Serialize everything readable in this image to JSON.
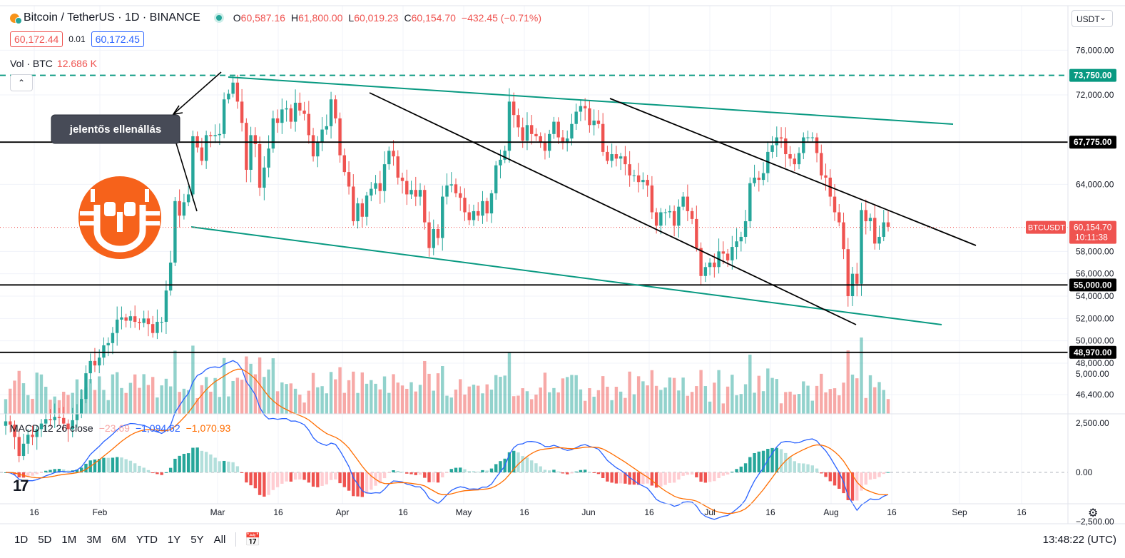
{
  "header": {
    "symbol": "Bitcoin / TetherUS · 1D · BINANCE",
    "o_label": "O",
    "o": "60,587.16",
    "h_label": "H",
    "h": "61,800.00",
    "l_label": "L",
    "l": "60,019.23",
    "c_label": "C",
    "c": "60,154.70",
    "change": "−432.45 (−0.71%)"
  },
  "quote": {
    "sell": "60,172.44",
    "spread": "0.01",
    "buy": "60,172.45"
  },
  "volume": {
    "label": "Vol · BTC",
    "value": "12.686 K"
  },
  "currency_button": "USDT",
  "macd": {
    "label": "MACD 12 26 close",
    "hist": "−23.69",
    "macd": "−1,094.62",
    "signal": "−1,070.93"
  },
  "annotation": {
    "text": "jelentős ellenállás"
  },
  "time_ranges": [
    "1D",
    "5D",
    "1M",
    "3M",
    "6M",
    "YTD",
    "1Y",
    "5Y",
    "All"
  ],
  "clock": "13:48:22 (UTC)",
  "colors": {
    "up": "#26a69a",
    "down": "#ef5350",
    "macd": "#2962ff",
    "signal": "#ff6d00",
    "channel": "#089981",
    "logo": "#f6621b"
  },
  "chart_data": {
    "type": "candlestick",
    "y_axis_ticks": [
      "76,000.00",
      "72,000.00",
      "64,000.00",
      "58,000.00",
      "56,000.00",
      "54,000.00",
      "52,000.00",
      "50,000.00",
      "48,000.00",
      "46,400.00"
    ],
    "x_axis_ticks": [
      "16",
      "Feb",
      "Mar",
      "16",
      "Apr",
      "16",
      "May",
      "16",
      "Jun",
      "16",
      "Jul",
      "16",
      "Aug",
      "16",
      "Sep",
      "16"
    ],
    "price_lines": [
      {
        "value": 73750,
        "label": "73,750.00",
        "style": "dashed",
        "color": "#089981"
      },
      {
        "value": 67775,
        "label": "67,775.00",
        "style": "solid",
        "color": "#000000"
      },
      {
        "value": 55000,
        "label": "55,000.00",
        "style": "solid",
        "color": "#000000"
      },
      {
        "value": 48970,
        "label": "48,970.00",
        "style": "solid",
        "color": "#000000"
      }
    ],
    "last_price": {
      "symbol": "BTCUSDT",
      "value": "60,154.70",
      "countdown": "10:11:38"
    },
    "macd_axis_ticks": [
      "5,000.00",
      "2,500.00",
      "0.00",
      "−2,500.00"
    ],
    "closes": [
      42800,
      42500,
      41400,
      39700,
      40800,
      41600,
      41400,
      42100,
      42600,
      43000,
      42900,
      43200,
      43100,
      42600,
      42100,
      42900,
      43500,
      44800,
      47100,
      48200,
      47800,
      48500,
      49600,
      49800,
      50700,
      51900,
      52100,
      51800,
      52200,
      51700,
      51600,
      52000,
      51500,
      50700,
      51700,
      51700,
      54500,
      57000,
      62500,
      61200,
      62400,
      63100,
      68300,
      67300,
      66100,
      68400,
      68300,
      68400,
      68500,
      71600,
      72100,
      73100,
      71400,
      69500,
      65300,
      68400,
      67600,
      63700,
      65500,
      67200,
      69900,
      69500,
      70700,
      70800,
      69600,
      71300,
      70600,
      70300,
      68400,
      66500,
      67800,
      68900,
      69200,
      71600,
      69900,
      66600,
      65100,
      63800,
      60700,
      62300,
      61100,
      63000,
      63600,
      64100,
      63400,
      65800,
      67000,
      66500,
      64600,
      64300,
      63100,
      63500,
      62900,
      63500,
      60600,
      58300,
      60000,
      59200,
      62900,
      63900,
      64000,
      63200,
      62800,
      61500,
      60800,
      61600,
      61200,
      62500,
      61400,
      63200,
      65700,
      66200,
      67000,
      71400,
      70200,
      69100,
      67900,
      69300,
      68500,
      68300,
      67800,
      67000,
      68500,
      69600,
      68200,
      67700,
      68100,
      69400,
      70500,
      71000,
      70800,
      69300,
      69700,
      69400,
      66900,
      66100,
      66700,
      66300,
      66500,
      65800,
      64800,
      64800,
      64200,
      64400,
      63900,
      61500,
      60300,
      61500,
      61500,
      61600,
      60300,
      62000,
      62900,
      61600,
      60900,
      58300,
      55800,
      56600,
      57000,
      56600,
      58000,
      57800,
      57200,
      58400,
      58900,
      59300,
      60700,
      64100,
      64600,
      64400,
      65000,
      66900,
      67500,
      68200,
      68100,
      66700,
      66300,
      65800,
      66800,
      68200,
      68200,
      68200,
      66800,
      64800,
      64600,
      62900,
      61500,
      60600,
      58200,
      54000,
      56000,
      55100,
      61700,
      60700,
      61000,
      58700,
      59300,
      60600,
      60200
    ]
  }
}
